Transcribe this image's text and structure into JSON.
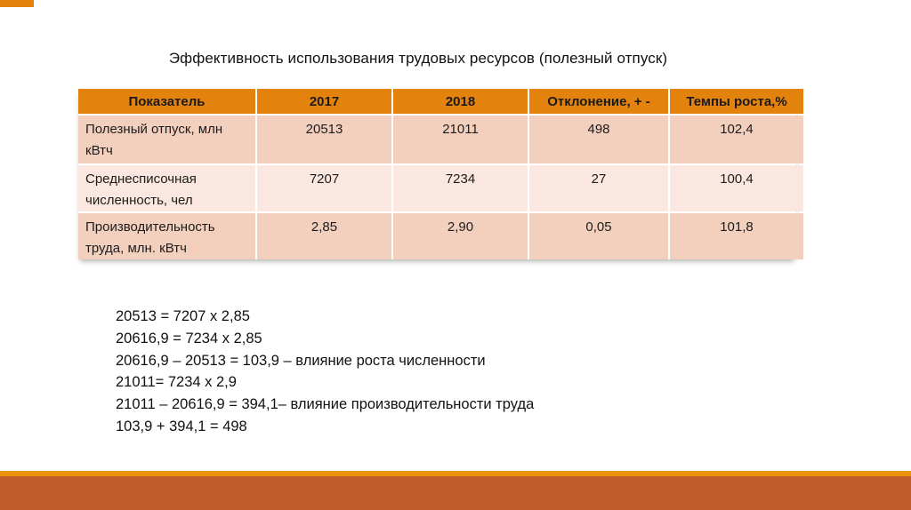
{
  "slide": {
    "title": "Эффективность использования трудовых ресурсов (полезный отпуск)"
  },
  "table": {
    "columns": [
      "Показатель",
      "2017",
      "2018",
      "Отклонение, + -",
      "Темпы роста,%"
    ],
    "rows": [
      {
        "label": "Полезный отпуск, млн кВтч",
        "values": [
          "20513",
          "21011",
          "498",
          "102,4"
        ]
      },
      {
        "label": "Среднесписочная численность, чел",
        "values": [
          "7207",
          "7234",
          "27",
          "100,4"
        ]
      },
      {
        "label": "Производительность труда, млн. кВтч",
        "values": [
          "2,85",
          "2,90",
          "0,05",
          "101,8"
        ]
      }
    ]
  },
  "calculations": {
    "lines": [
      "20513 = 7207 x 2,85",
      "20616,9 = 7234 x 2,85",
      "20616,9 – 20513 = 103,9 – влияние роста численности",
      "21011= 7234 x 2,9",
      "21011 – 20616,9 = 394,1– влияние производительности труда",
      "103,9 + 394,1 = 498"
    ]
  },
  "colors": {
    "header_bg": "#E3830D",
    "row_band_dark": "#F3CFBE",
    "row_band_light": "#FAE8E0",
    "accent_stripe": "#E9930D",
    "footer_band": "#BF5B28",
    "text": "#111111"
  }
}
